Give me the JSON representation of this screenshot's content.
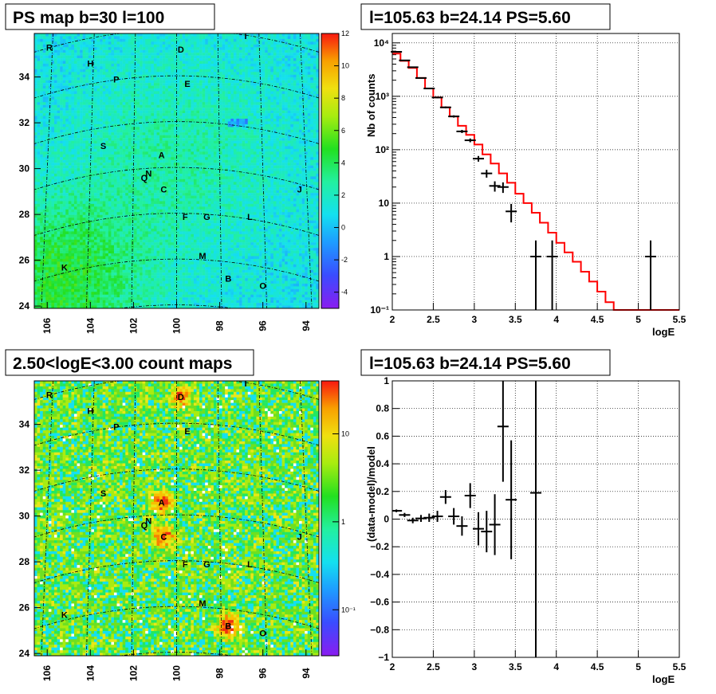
{
  "chart_data": [
    {
      "type": "heatmap",
      "title": "PS map b=30 l=100",
      "x_ticks": [
        "106",
        "104",
        "102",
        "100",
        "98",
        "96",
        "94"
      ],
      "y_ticks": [
        "24",
        "26",
        "28",
        "30",
        "32",
        "34"
      ],
      "colorbar": {
        "scale": "linear",
        "range": [
          -5,
          12
        ],
        "ticks": [
          "-4",
          "-2",
          "0",
          "2",
          "4",
          "6",
          "8",
          "10",
          "12"
        ]
      },
      "sources": [
        {
          "label": "R",
          "l": 105.9,
          "b": 35.3
        },
        {
          "label": "H",
          "l": 104.0,
          "b": 34.6
        },
        {
          "label": "P",
          "l": 102.8,
          "b": 33.9
        },
        {
          "label": "D",
          "l": 99.8,
          "b": 35.2
        },
        {
          "label": "E",
          "l": 99.5,
          "b": 33.7
        },
        {
          "label": "I",
          "l": 96.8,
          "b": 35.8
        },
        {
          "label": "S",
          "l": 103.4,
          "b": 31.0
        },
        {
          "label": "A",
          "l": 100.7,
          "b": 30.6
        },
        {
          "label": "N",
          "l": 101.3,
          "b": 29.8
        },
        {
          "label": "Q",
          "l": 101.5,
          "b": 29.6
        },
        {
          "label": "C",
          "l": 100.6,
          "b": 29.1
        },
        {
          "label": "J",
          "l": 94.3,
          "b": 29.1
        },
        {
          "label": "F",
          "l": 99.6,
          "b": 27.9
        },
        {
          "label": "G",
          "l": 98.6,
          "b": 27.9
        },
        {
          "label": "L",
          "l": 96.6,
          "b": 27.9
        },
        {
          "label": "M",
          "l": 98.8,
          "b": 26.2
        },
        {
          "label": "K",
          "l": 105.2,
          "b": 25.7
        },
        {
          "label": "B",
          "l": 97.6,
          "b": 25.2
        },
        {
          "label": "O",
          "l": 96.0,
          "b": 24.9
        }
      ]
    },
    {
      "type": "line",
      "title": "l=105.63 b=24.14 PS=5.60",
      "xlabel": "logE",
      "ylabel": "Nb of counts",
      "xlim": [
        2,
        5.5
      ],
      "ylim": [
        0.1,
        15000
      ],
      "yscale": "log",
      "x_ticks": [
        "2",
        "2.5",
        "3",
        "3.5",
        "4",
        "4.5",
        "5",
        "5.5"
      ],
      "y_ticks": [
        "10⁻¹",
        "1",
        "10",
        "10²",
        "10³",
        "10⁴"
      ],
      "grid": true,
      "model_bin_edges": [
        2.0,
        2.1,
        2.2,
        2.3,
        2.4,
        2.5,
        2.6,
        2.7,
        2.8,
        2.9,
        3.0,
        3.1,
        3.2,
        3.3,
        3.4,
        3.5,
        3.6,
        3.7,
        3.8,
        3.9,
        4.0,
        4.1,
        4.2,
        4.3,
        4.4,
        4.5,
        4.6,
        4.7,
        4.8,
        4.9,
        5.0,
        5.1,
        5.2,
        5.3,
        5.4,
        5.5
      ],
      "model_values": [
        6300,
        4600,
        3400,
        2200,
        1400,
        950,
        620,
        420,
        280,
        190,
        125,
        82,
        55,
        36,
        24,
        15,
        10,
        6.6,
        4.3,
        2.8,
        1.8,
        1.2,
        0.8,
        0.52,
        0.34,
        0.22,
        0.14,
        0.1,
        0.1,
        0.1,
        0.1,
        0.1,
        0.1,
        0.1,
        0.1
      ],
      "model_color": "#ff0000",
      "data": [
        {
          "x": 2.05,
          "y": 6800
        },
        {
          "x": 2.15,
          "y": 4700
        },
        {
          "x": 2.25,
          "y": 3500
        },
        {
          "x": 2.35,
          "y": 2200
        },
        {
          "x": 2.45,
          "y": 1400
        },
        {
          "x": 2.55,
          "y": 950
        },
        {
          "x": 2.65,
          "y": 620
        },
        {
          "x": 2.75,
          "y": 420
        },
        {
          "x": 2.85,
          "y": 220
        },
        {
          "x": 2.95,
          "y": 150
        },
        {
          "x": 3.05,
          "y": 68
        },
        {
          "x": 3.15,
          "y": 36
        },
        {
          "x": 3.25,
          "y": 21
        },
        {
          "x": 3.35,
          "y": 20
        },
        {
          "x": 3.45,
          "y": 7
        },
        {
          "x": 3.75,
          "y": 1
        },
        {
          "x": 3.95,
          "y": 1
        },
        {
          "x": 5.15,
          "y": 1
        }
      ]
    },
    {
      "type": "heatmap",
      "title": "2.50<logE<3.00 count maps",
      "x_ticks": [
        "106",
        "104",
        "102",
        "100",
        "98",
        "96",
        "94"
      ],
      "y_ticks": [
        "24",
        "26",
        "28",
        "30",
        "32",
        "34"
      ],
      "colorbar": {
        "scale": "log",
        "range": [
          0.03,
          40
        ],
        "ticks": [
          "10⁻¹",
          "1",
          "10"
        ]
      },
      "sources_same_as_panel_1": true
    },
    {
      "type": "scatter",
      "title": "l=105.63 b=24.14 PS=5.60",
      "xlabel": "logE",
      "ylabel": "(data-model)/model",
      "xlim": [
        2,
        5.5
      ],
      "ylim": [
        -1,
        1
      ],
      "x_ticks": [
        "2",
        "2.5",
        "3",
        "3.5",
        "4",
        "4.5",
        "5",
        "5.5"
      ],
      "y_ticks": [
        "−1",
        "−0.8",
        "−0.6",
        "−0.4",
        "−0.2",
        "0",
        "0.2",
        "0.4",
        "0.6",
        "0.8",
        "1"
      ],
      "grid": true,
      "data": [
        {
          "x": 2.05,
          "y": 0.06,
          "err": 0.01
        },
        {
          "x": 2.15,
          "y": 0.03,
          "err": 0.015
        },
        {
          "x": 2.25,
          "y": -0.01,
          "err": 0.02
        },
        {
          "x": 2.35,
          "y": 0.005,
          "err": 0.025
        },
        {
          "x": 2.45,
          "y": 0.01,
          "err": 0.03
        },
        {
          "x": 2.55,
          "y": 0.02,
          "err": 0.04
        },
        {
          "x": 2.65,
          "y": 0.16,
          "err": 0.05
        },
        {
          "x": 2.75,
          "y": 0.02,
          "err": 0.06
        },
        {
          "x": 2.85,
          "y": -0.05,
          "err": 0.07
        },
        {
          "x": 2.95,
          "y": 0.17,
          "err": 0.09
        },
        {
          "x": 3.05,
          "y": -0.07,
          "err": 0.12
        },
        {
          "x": 3.15,
          "y": -0.09,
          "err": 0.15
        },
        {
          "x": 3.25,
          "y": -0.04,
          "err": 0.22
        },
        {
          "x": 3.35,
          "y": 0.67,
          "err": 0.4
        },
        {
          "x": 3.45,
          "y": 0.14,
          "err": 0.43
        },
        {
          "x": 3.75,
          "y": 0.19,
          "err": 1.3
        }
      ]
    }
  ]
}
